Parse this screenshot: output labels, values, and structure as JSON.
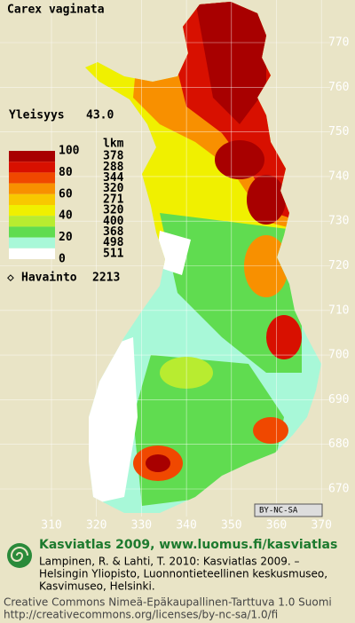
{
  "title": "Carex vaginata",
  "frequency": {
    "label": "Yleisyys",
    "value": "43.0"
  },
  "legend": {
    "scale_labels": [
      "100",
      "80",
      "60",
      "40",
      "20",
      "0"
    ],
    "count_header": "lkm",
    "counts": [
      "378",
      "288",
      "344",
      "320",
      "271",
      "320",
      "400",
      "368",
      "498",
      "511"
    ],
    "colors": [
      "#a80000",
      "#d81000",
      "#f04800",
      "#f89000",
      "#f8c800",
      "#f0f000",
      "#b8ec30",
      "#60dc50",
      "#a8f8d8",
      "#ffffff"
    ]
  },
  "observations": {
    "label": "Havainto",
    "value": "2213"
  },
  "grid": {
    "y_labels": [
      "770",
      "760",
      "750",
      "740",
      "730",
      "720",
      "710",
      "700",
      "690",
      "680",
      "670"
    ],
    "x_labels": [
      "310",
      "320",
      "330",
      "340",
      "350",
      "360",
      "370"
    ]
  },
  "license_badge": "BY-NC-SA",
  "footer": {
    "heading": "Kasviatlas 2009, www.luomus.fi/kasviatlas",
    "citation": [
      "Lampinen, R. & Lahti, T. 2010: Kasviatlas 2009. –",
      "Helsingin Yliopisto, Luonnontieteellinen keskusmuseo,",
      "Kasvimuseo, Helsinki."
    ],
    "license": [
      "Creative Commons Nimeä-Epäkaupallinen-Tarttuva 1.0 Suomi",
      "http://creativecommons.org/licenses/by-nc-sa/1.0/fi"
    ]
  }
}
